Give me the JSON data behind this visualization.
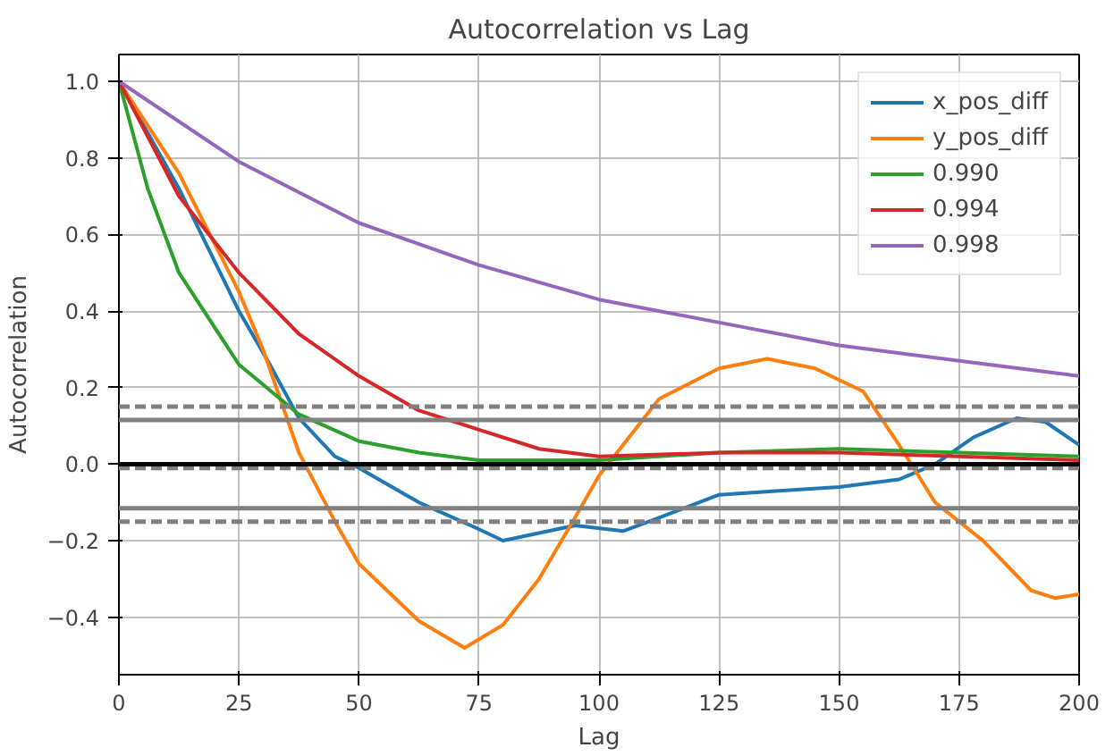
{
  "chart_data": {
    "type": "line",
    "title": "Autocorrelation vs Lag",
    "xlabel": "Lag",
    "ylabel": "Autocorrelation",
    "xlim": [
      0,
      200
    ],
    "xticks": [
      0,
      25,
      50,
      75,
      100,
      125,
      150,
      175,
      200
    ],
    "ylim": [
      -0.55,
      1.07
    ],
    "yticks": [
      {
        "value": -0.4,
        "label": "−0.4"
      },
      {
        "value": -0.2,
        "label": "−0.2"
      },
      {
        "value": 0,
        "label": "0.0"
      },
      {
        "value": 0.2,
        "label": "0.2"
      },
      {
        "value": 0.4,
        "label": "0.4"
      },
      {
        "value": 0.6,
        "label": "0.6"
      },
      {
        "value": 0.8,
        "label": "0.8"
      },
      {
        "value": 1.0,
        "label": "1.0"
      }
    ],
    "grid": true,
    "legend": "top right",
    "ref_lines": [
      {
        "axis": "y",
        "value": 0.15,
        "color": "#808080",
        "line_style": "dashed"
      },
      {
        "axis": "y",
        "value": 0.115,
        "color": "#808080",
        "line_style": "solid"
      },
      {
        "axis": "y",
        "value": -0.01,
        "color": "#808080",
        "line_style": "dashed"
      },
      {
        "axis": "y",
        "value": -0.115,
        "color": "#808080",
        "line_style": "solid"
      },
      {
        "axis": "y",
        "value": -0.15,
        "color": "#808080",
        "line_style": "dashed"
      },
      {
        "axis": "y",
        "value": 0,
        "color": "#000000",
        "line_style": "solid"
      }
    ],
    "series": [
      {
        "name": "x_pos_diff",
        "color": "#1f77b4",
        "x": [
          0,
          12.5,
          25,
          31,
          37.5,
          45,
          50,
          62.5,
          75,
          80,
          87.5,
          95,
          105,
          112.5,
          125,
          137.5,
          150,
          162.5,
          170,
          178,
          187,
          193,
          200
        ],
        "values": [
          1,
          0.72,
          0.4,
          0.27,
          0.12,
          0.02,
          -0.01,
          -0.1,
          -0.17,
          -0.2,
          -0.18,
          -0.16,
          -0.175,
          -0.14,
          -0.08,
          -0.07,
          -0.06,
          -0.04,
          0.0,
          0.07,
          0.12,
          0.11,
          0.05
        ]
      },
      {
        "name": "y_pos_diff",
        "color": "#ff7f0e",
        "x": [
          0,
          12.5,
          25,
          30,
          37.5,
          45,
          50,
          62.5,
          72,
          80,
          87.5,
          95,
          100,
          112.5,
          125,
          135,
          145,
          155,
          162.5,
          170,
          180,
          190,
          195,
          200
        ],
        "values": [
          1,
          0.76,
          0.45,
          0.3,
          0.03,
          -0.15,
          -0.26,
          -0.41,
          -0.48,
          -0.42,
          -0.3,
          -0.14,
          -0.03,
          0.17,
          0.25,
          0.275,
          0.25,
          0.19,
          0.05,
          -0.1,
          -0.2,
          -0.33,
          -0.35,
          -0.34
        ]
      },
      {
        "name": "0.990",
        "color": "#2ca02c",
        "x": [
          0,
          6,
          12.5,
          25,
          37.5,
          50,
          62.5,
          75,
          100,
          125,
          150,
          175,
          200
        ],
        "values": [
          1,
          0.72,
          0.5,
          0.26,
          0.13,
          0.06,
          0.03,
          0.01,
          0.01,
          0.03,
          0.04,
          0.03,
          0.02
        ]
      },
      {
        "name": "0.994",
        "color": "#d62728",
        "x": [
          0,
          12.5,
          25,
          37.5,
          50,
          62.5,
          75,
          87.5,
          100,
          125,
          150,
          175,
          200
        ],
        "values": [
          1,
          0.7,
          0.5,
          0.34,
          0.23,
          0.14,
          0.09,
          0.04,
          0.02,
          0.03,
          0.03,
          0.02,
          0.01
        ]
      },
      {
        "name": "0.998",
        "color": "#9467bd",
        "x": [
          0,
          25,
          50,
          75,
          100,
          125,
          150,
          175,
          200
        ],
        "values": [
          1,
          0.79,
          0.63,
          0.52,
          0.43,
          0.37,
          0.31,
          0.27,
          0.23
        ]
      }
    ]
  }
}
